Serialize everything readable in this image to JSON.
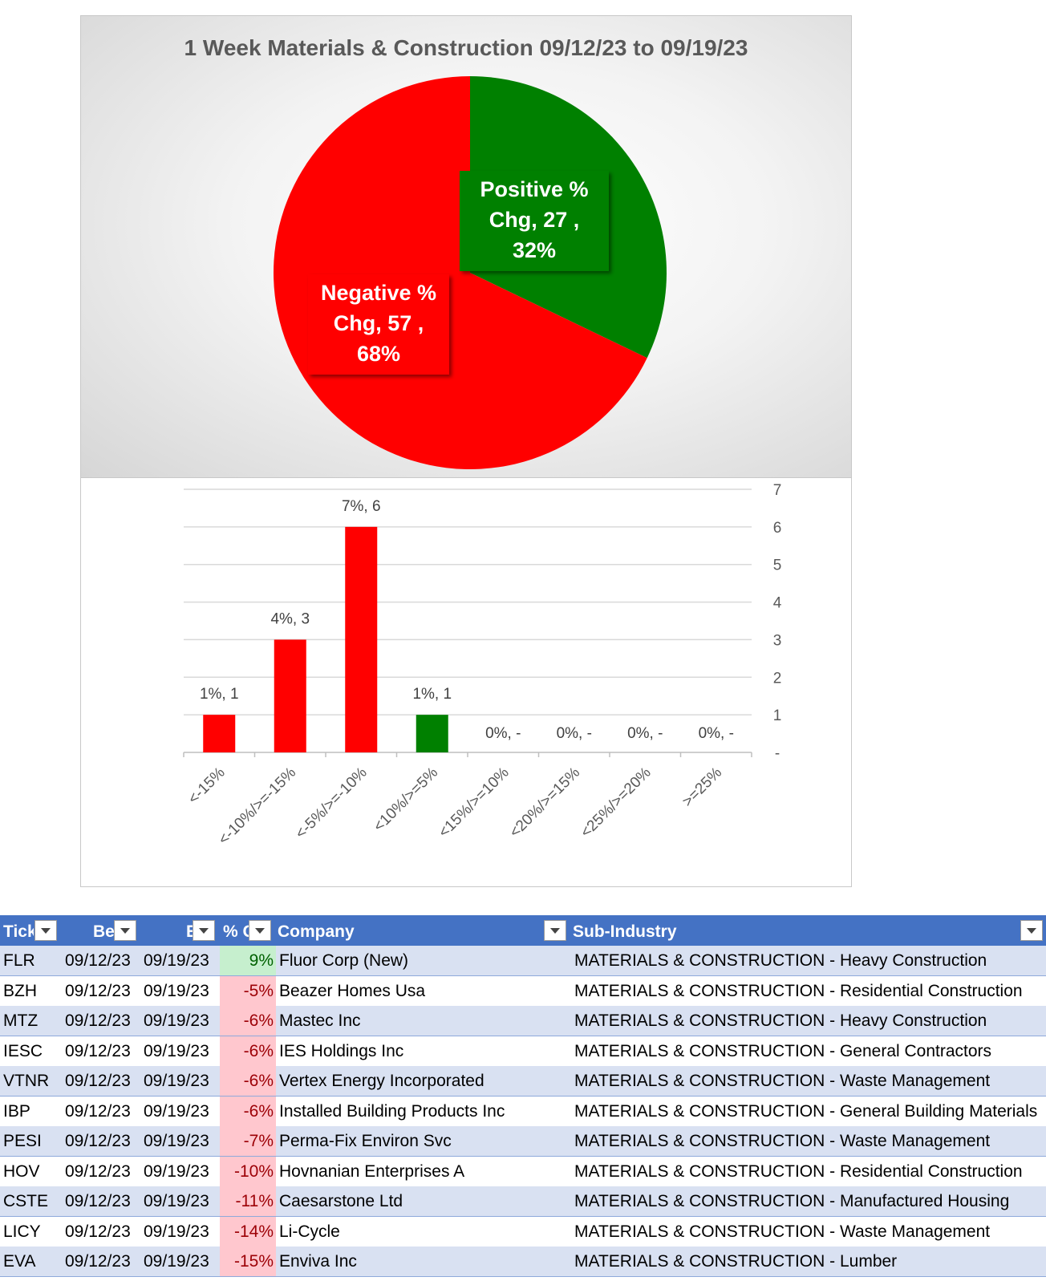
{
  "chart_data": [
    {
      "type": "pie",
      "title": "1 Week Materials & Construction 09/12/23 to 09/19/23",
      "slices": [
        {
          "label_line1": "Positive %",
          "label_line2": "Chg,  27 ,",
          "label_line3": "32%",
          "value": 27,
          "percent": 32,
          "color": "#008000"
        },
        {
          "label_line1": "Negative %",
          "label_line2": "Chg,  57 ,",
          "label_line3": "68%",
          "value": 57,
          "percent": 68,
          "color": "#ff0000"
        }
      ]
    },
    {
      "type": "bar",
      "categories": [
        "<-15%",
        "<-10%/>=-15%",
        "<-5%/>=-10%",
        "<10%/>=5%",
        "<15%/>=10%",
        "<20%/>=15%",
        "<25%/>=20%",
        ">=25%"
      ],
      "values": [
        1,
        3,
        6,
        1,
        0,
        0,
        0,
        0
      ],
      "data_labels": [
        "1%,  1",
        "4%,  3",
        "7%,  6",
        "1%,  1",
        "0%,  -",
        "0%,  -",
        "0%,  -",
        "0%,  -"
      ],
      "colors": [
        "#ff0000",
        "#ff0000",
        "#ff0000",
        "#008000",
        "#ff0000",
        "#ff0000",
        "#ff0000",
        "#008000"
      ],
      "ylim": [
        0,
        7
      ],
      "y_ticks": [
        "-",
        "1",
        "2",
        "3",
        "4",
        "5",
        "6",
        "7"
      ],
      "y_axis_side": "right",
      "grid": true
    }
  ],
  "table": {
    "headers": [
      "Tick",
      "Be",
      "E",
      "% C",
      "Company",
      "Sub-Industry"
    ],
    "rows": [
      {
        "ticker": "FLR",
        "begin": "09/12/23",
        "end": "09/19/23",
        "pct": "9%",
        "sign": "pos",
        "company": "Fluor Corp (New)",
        "sub": "MATERIALS & CONSTRUCTION - Heavy Construction"
      },
      {
        "ticker": "BZH",
        "begin": "09/12/23",
        "end": "09/19/23",
        "pct": "-5%",
        "sign": "neg",
        "company": "Beazer Homes Usa",
        "sub": "MATERIALS & CONSTRUCTION - Residential Construction"
      },
      {
        "ticker": "MTZ",
        "begin": "09/12/23",
        "end": "09/19/23",
        "pct": "-6%",
        "sign": "neg",
        "company": "Mastec Inc",
        "sub": "MATERIALS & CONSTRUCTION - Heavy Construction"
      },
      {
        "ticker": "IESC",
        "begin": "09/12/23",
        "end": "09/19/23",
        "pct": "-6%",
        "sign": "neg",
        "company": "IES Holdings Inc",
        "sub": "MATERIALS & CONSTRUCTION - General Contractors"
      },
      {
        "ticker": "VTNR",
        "begin": "09/12/23",
        "end": "09/19/23",
        "pct": "-6%",
        "sign": "neg",
        "company": "Vertex Energy Incorporated",
        "sub": "MATERIALS & CONSTRUCTION - Waste Management"
      },
      {
        "ticker": "IBP",
        "begin": "09/12/23",
        "end": "09/19/23",
        "pct": "-6%",
        "sign": "neg",
        "company": "Installed Building Products Inc",
        "sub": "MATERIALS & CONSTRUCTION - General Building Materials"
      },
      {
        "ticker": "PESI",
        "begin": "09/12/23",
        "end": "09/19/23",
        "pct": "-7%",
        "sign": "neg",
        "company": "Perma-Fix Environ Svc",
        "sub": "MATERIALS & CONSTRUCTION - Waste Management"
      },
      {
        "ticker": "HOV",
        "begin": "09/12/23",
        "end": "09/19/23",
        "pct": "-10%",
        "sign": "neg",
        "company": "Hovnanian Enterprises A",
        "sub": "MATERIALS & CONSTRUCTION - Residential Construction"
      },
      {
        "ticker": "CSTE",
        "begin": "09/12/23",
        "end": "09/19/23",
        "pct": "-11%",
        "sign": "neg",
        "company": "Caesarstone Ltd",
        "sub": "MATERIALS & CONSTRUCTION - Manufactured Housing"
      },
      {
        "ticker": "LICY",
        "begin": "09/12/23",
        "end": "09/19/23",
        "pct": "-14%",
        "sign": "neg",
        "company": "Li-Cycle",
        "sub": "MATERIALS & CONSTRUCTION - Waste Management"
      },
      {
        "ticker": "EVA",
        "begin": "09/12/23",
        "end": "09/19/23",
        "pct": "-15%",
        "sign": "neg",
        "company": "Enviva Inc",
        "sub": "MATERIALS & CONSTRUCTION - Lumber"
      }
    ]
  }
}
